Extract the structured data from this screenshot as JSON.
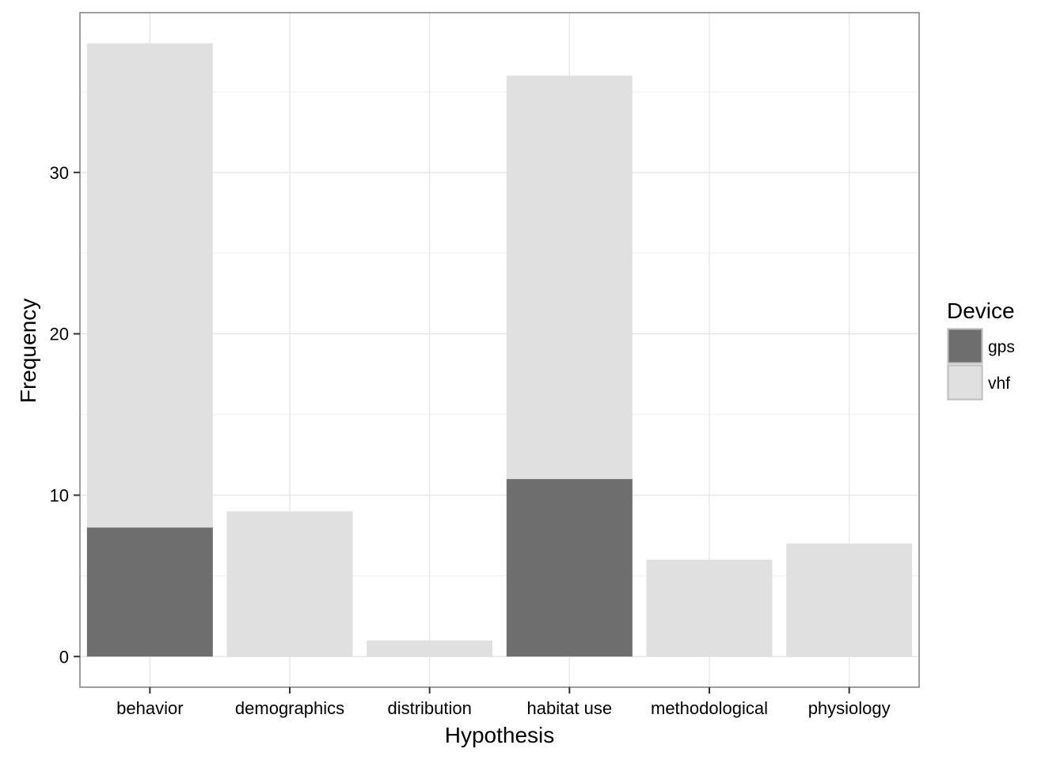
{
  "chart_data": {
    "type": "bar",
    "stacked": true,
    "title": "",
    "xlabel": "Hypothesis",
    "ylabel": "Frequency",
    "categories": [
      "behavior",
      "demographics",
      "distribution",
      "habitat use",
      "methodological",
      "physiology"
    ],
    "series": [
      {
        "name": "gps",
        "values": [
          8,
          0,
          0,
          11,
          0,
          0
        ],
        "color": "#6e6e6e"
      },
      {
        "name": "vhf",
        "values": [
          30,
          9,
          1,
          25,
          6,
          7
        ],
        "color": "#e0e0e0"
      }
    ],
    "y_ticks": [
      0,
      10,
      20,
      30
    ],
    "ylim": [
      -1.9,
      39.9
    ],
    "grid": true,
    "legend": {
      "title": "Device",
      "position": "right"
    }
  }
}
